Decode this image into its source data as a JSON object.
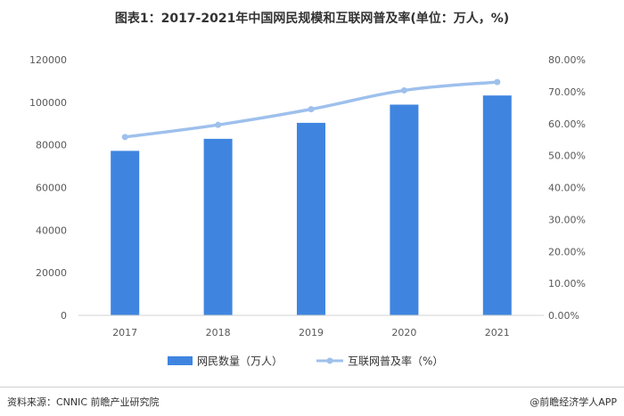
{
  "title": "图表1：2017-2021年中国网民规模和互联网普及率(单位：万人，%)",
  "source": "资料来源：CNNIC 前瞻产业研究院",
  "brand": "@前瞻经济学人APP",
  "chart_data": {
    "type": "bar",
    "categories": [
      "2017",
      "2018",
      "2019",
      "2020",
      "2021"
    ],
    "series": [
      {
        "name": "网民数量（万人）",
        "type": "bar",
        "axis": "left",
        "values": [
          77198,
          82851,
          90359,
          98899,
          103195
        ],
        "color": "#3f85e0"
      },
      {
        "name": "互联网普及率（%）",
        "type": "line",
        "axis": "right",
        "values": [
          55.8,
          59.6,
          64.5,
          70.4,
          73.0
        ],
        "color": "#9ec0ec"
      }
    ],
    "left_axis": {
      "min": 0,
      "max": 120000,
      "step": 20000,
      "ticks": [
        "0",
        "20000",
        "40000",
        "60000",
        "80000",
        "100000",
        "120000"
      ]
    },
    "right_axis": {
      "min": 0,
      "max": 80,
      "step": 10,
      "ticks": [
        "0.00%",
        "10.00%",
        "20.00%",
        "30.00%",
        "40.00%",
        "50.00%",
        "60.00%",
        "70.00%",
        "80.00%"
      ]
    },
    "legend_position": "bottom",
    "grid": false
  }
}
